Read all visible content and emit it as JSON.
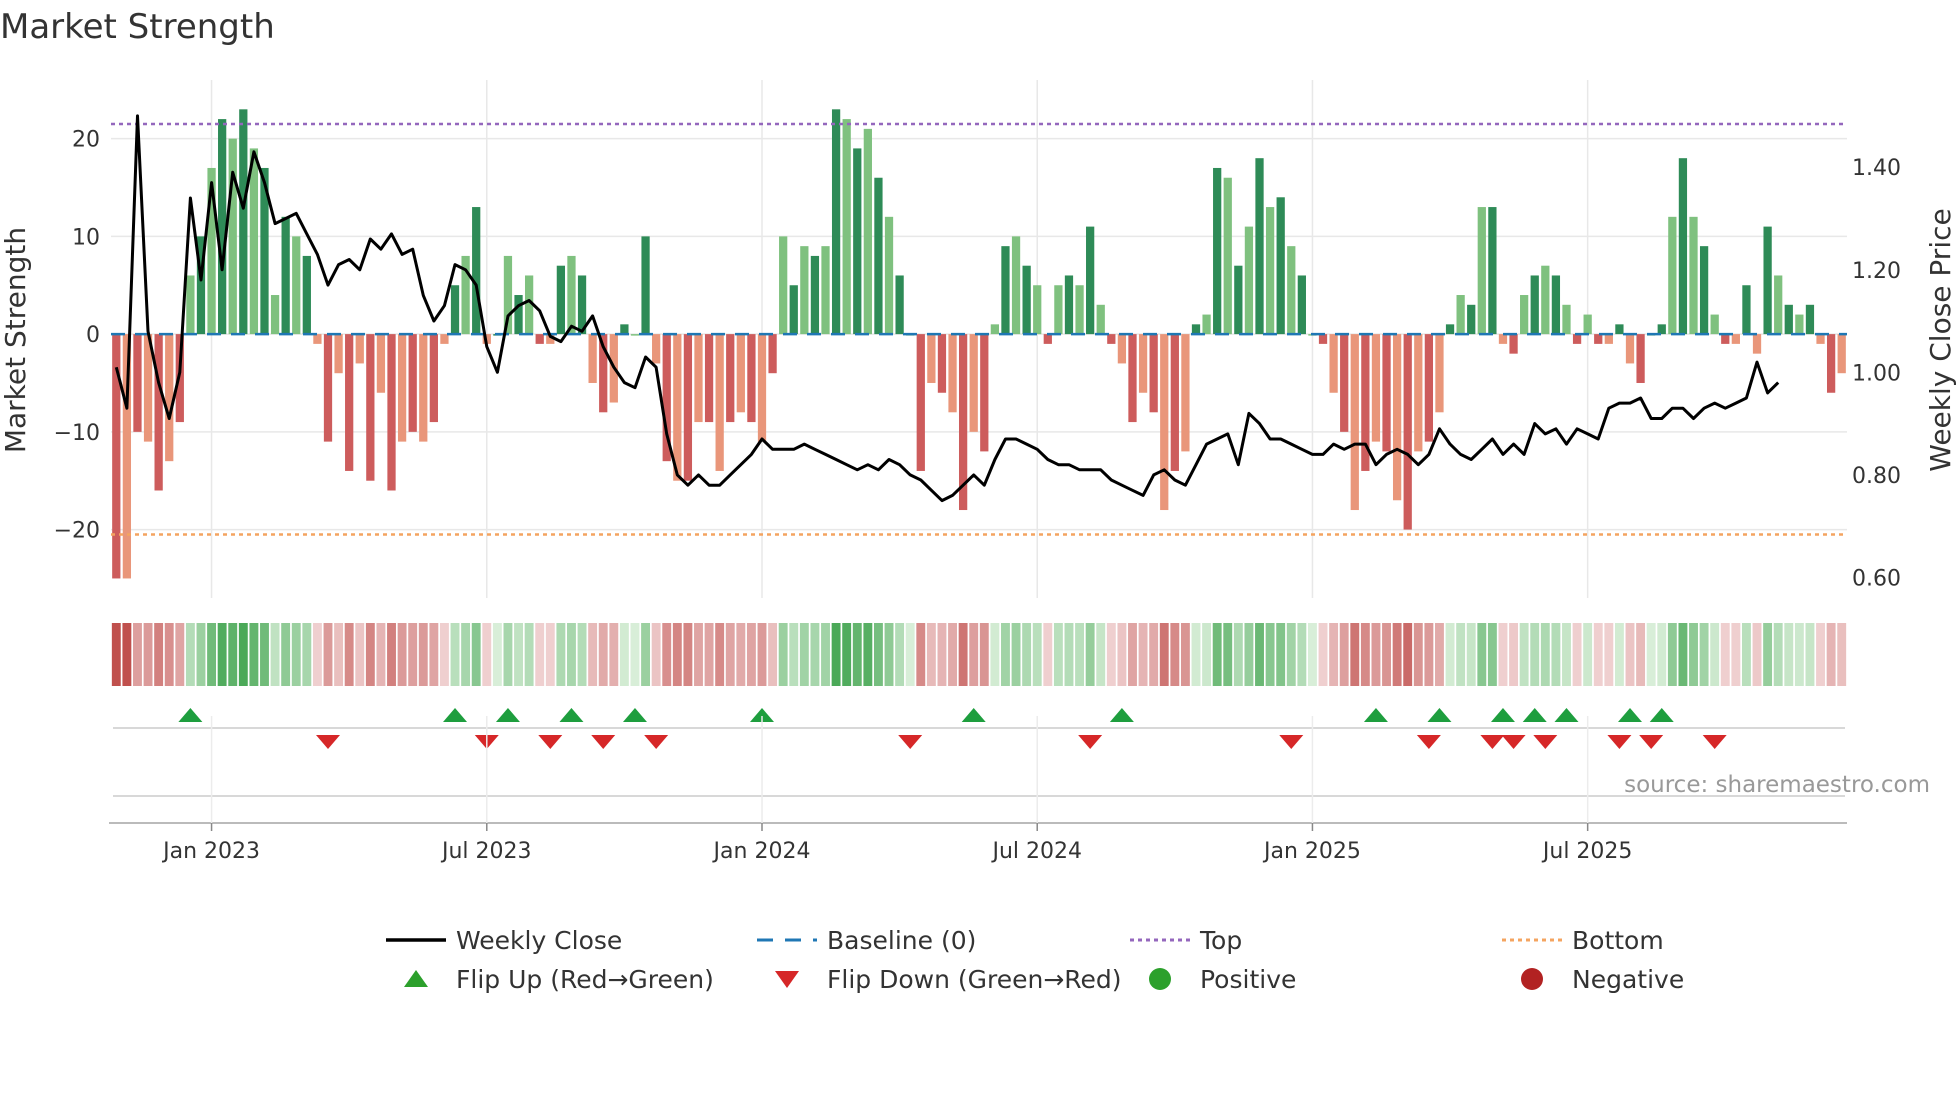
{
  "chart_data": {
    "type": "bar+line",
    "title": "Market Strength",
    "ylabel_left": "Market Strength",
    "ylabel_right": "Weekly Close Price",
    "ylim_left": [
      -27,
      26
    ],
    "ylim_right": [
      0.56,
      1.57
    ],
    "yticks_left": [
      20,
      10,
      0,
      -10,
      -20
    ],
    "ytick_labels_left": [
      "20",
      "10",
      "0",
      "−10",
      "−20"
    ],
    "yticks_right": [
      1.4,
      1.2,
      1.0,
      0.8,
      0.6
    ],
    "ytick_labels_right": [
      "1.40",
      "1.20",
      "1.00",
      "0.80",
      "0.60"
    ],
    "x_ticks": [
      {
        "week": 9,
        "label": "Jan 2023"
      },
      {
        "week": 35,
        "label": "Jul 2023"
      },
      {
        "week": 61,
        "label": "Jan 2024"
      },
      {
        "week": 87,
        "label": "Jul 2024"
      },
      {
        "week": 113,
        "label": "Jan 2025"
      },
      {
        "week": 139,
        "label": "Jul 2025"
      }
    ],
    "top_line": 21.5,
    "bottom_line": -20.5,
    "baseline": 0,
    "strength": [
      -25,
      -25,
      -10,
      -11,
      -16,
      -13,
      -9,
      6,
      10,
      17,
      22,
      20,
      23,
      19,
      17,
      4,
      12,
      10,
      8,
      -1,
      -11,
      -4,
      -14,
      -3,
      -15,
      -6,
      -16,
      -11,
      -10,
      -11,
      -9,
      -1,
      5,
      8,
      13,
      -1,
      0,
      8,
      4,
      6,
      -1,
      -1,
      7,
      8,
      6,
      -5,
      -8,
      -7,
      1,
      0,
      10,
      -3,
      -13,
      -15,
      -15,
      -9,
      -9,
      -14,
      -9,
      -8,
      -9,
      -11,
      -4,
      10,
      5,
      9,
      8,
      9,
      23,
      22,
      19,
      21,
      16,
      12,
      6,
      0,
      -14,
      -5,
      -6,
      -8,
      -18,
      -10,
      -12,
      1,
      9,
      10,
      7,
      5,
      -1,
      5,
      6,
      5,
      11,
      3,
      -1,
      -3,
      -9,
      -6,
      -8,
      -18,
      -14,
      -12,
      1,
      2,
      17,
      16,
      7,
      11,
      18,
      13,
      14,
      9,
      6,
      0,
      -1,
      -6,
      -10,
      -18,
      -14,
      -11,
      -12,
      -17,
      -20,
      -12,
      -11,
      -8,
      1,
      4,
      3,
      13,
      13,
      -1,
      -2,
      4,
      6,
      7,
      6,
      3,
      -1,
      2,
      -1,
      -1,
      1,
      -3,
      -5,
      0,
      1,
      12,
      18,
      12,
      9,
      2,
      -1,
      -1,
      5,
      -2,
      11,
      6,
      3,
      2,
      3,
      -1,
      -6,
      -4
    ],
    "weekly_close": [
      1.01,
      0.93,
      1.5,
      1.08,
      0.98,
      0.91,
      1.0,
      1.34,
      1.18,
      1.37,
      1.2,
      1.39,
      1.32,
      1.43,
      1.37,
      1.29,
      1.3,
      1.31,
      1.27,
      1.23,
      1.17,
      1.21,
      1.22,
      1.2,
      1.26,
      1.24,
      1.27,
      1.23,
      1.24,
      1.15,
      1.1,
      1.13,
      1.21,
      1.2,
      1.17,
      1.05,
      1.0,
      1.11,
      1.13,
      1.14,
      1.12,
      1.07,
      1.06,
      1.09,
      1.08,
      1.11,
      1.05,
      1.01,
      0.98,
      0.97,
      1.03,
      1.01,
      0.88,
      0.8,
      0.78,
      0.8,
      0.78,
      0.78,
      0.8,
      0.82,
      0.84,
      0.87,
      0.85,
      0.85,
      0.85,
      0.86,
      0.85,
      0.84,
      0.83,
      0.82,
      0.81,
      0.82,
      0.81,
      0.83,
      0.82,
      0.8,
      0.79,
      0.77,
      0.75,
      0.76,
      0.78,
      0.8,
      0.78,
      0.83,
      0.87,
      0.87,
      0.86,
      0.85,
      0.83,
      0.82,
      0.82,
      0.81,
      0.81,
      0.81,
      0.79,
      0.78,
      0.77,
      0.76,
      0.8,
      0.81,
      0.79,
      0.78,
      0.82,
      0.86,
      0.87,
      0.88,
      0.82,
      0.92,
      0.9,
      0.87,
      0.87,
      0.86,
      0.85,
      0.84,
      0.84,
      0.86,
      0.85,
      0.86,
      0.86,
      0.82,
      0.84,
      0.85,
      0.84,
      0.82,
      0.84,
      0.89,
      0.86,
      0.84,
      0.83,
      0.85,
      0.87,
      0.84,
      0.86,
      0.84,
      0.9,
      0.88,
      0.89,
      0.86,
      0.89,
      0.88,
      0.87,
      0.93,
      0.94,
      0.94,
      0.95,
      0.91,
      0.91,
      0.93,
      0.93,
      0.91,
      0.93,
      0.94,
      0.93,
      0.94,
      0.95,
      1.02,
      0.96,
      0.98
    ],
    "flip_up_weeks": [
      7,
      32,
      37,
      43,
      49,
      61,
      81,
      95,
      119,
      125,
      131,
      134,
      137,
      143,
      146
    ],
    "flip_down_weeks": [
      20,
      35,
      41,
      46,
      51,
      75,
      92,
      111,
      124,
      130,
      132,
      135,
      142,
      145,
      151
    ],
    "source": "source: sharemaestro.com",
    "legend": [
      {
        "label": "Weekly Close",
        "style": "line",
        "color": "#000000"
      },
      {
        "label": "Baseline (0)",
        "style": "dashed",
        "color": "#1f77b4"
      },
      {
        "label": "Top",
        "style": "dotted",
        "color": "#9467bd"
      },
      {
        "label": "Bottom",
        "style": "dotted",
        "color": "#f4a460"
      },
      {
        "label": "Flip Up (Red→Green)",
        "style": "triangle-up",
        "color": "#2ca02c"
      },
      {
        "label": "Flip Down (Green→Red)",
        "style": "triangle-down",
        "color": "#d62728"
      },
      {
        "label": "Positive",
        "style": "circle",
        "color": "#2ca02c"
      },
      {
        "label": "Negative",
        "style": "circle",
        "color": "#b22222"
      }
    ],
    "colors": {
      "pos_dark": "#2e8b57",
      "pos_light": "#7fc17f",
      "neg_dark": "#cd5c5c",
      "neg_light": "#e9967a",
      "line": "#000000",
      "top_line": "#9467bd",
      "bottom_line": "#f4a460",
      "baseline": "#1f77b4",
      "flip_up": "#1e9e3e",
      "flip_down": "#d62728",
      "grid": "#e8e8e8"
    }
  }
}
